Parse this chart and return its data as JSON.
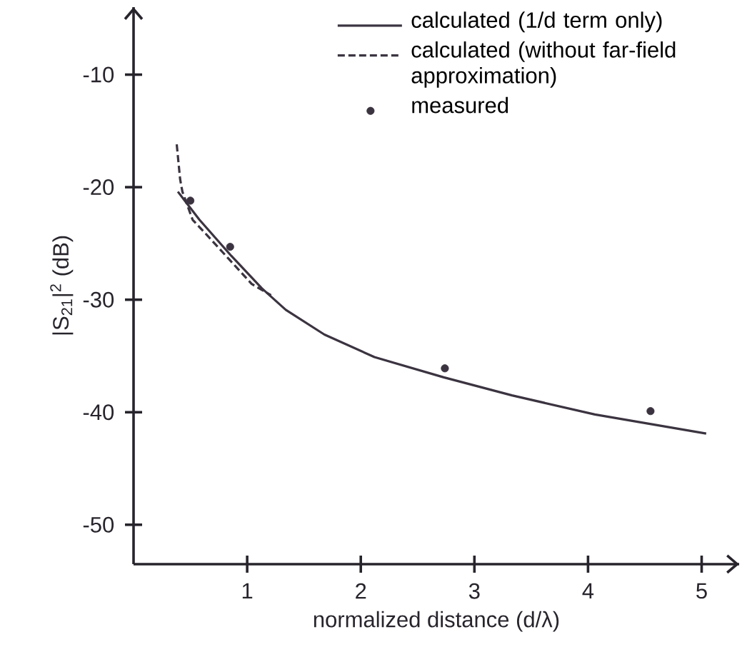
{
  "chart_data": {
    "type": "line",
    "xlabel": "normalized distance (d/λ)",
    "ylabel": "|S$_{21}$|$^{2}$ (dB)",
    "xlim": [
      0,
      5.33
    ],
    "ylim": [
      -53.5,
      -4
    ],
    "xticks": [
      1,
      2,
      3,
      4,
      5
    ],
    "yticks": [
      -50,
      -40,
      -30,
      -20,
      -10
    ],
    "grid": false,
    "legend": "top right",
    "series": [
      {
        "name": "calculated (1/d term only)",
        "line_style": "solid",
        "color": "#3b3440",
        "x": [
          0.39,
          0.58,
          0.86,
          1.13,
          1.34,
          1.68,
          2.12,
          2.73,
          3.33,
          4.06,
          5.04
        ],
        "values": [
          -20.4,
          -22.9,
          -26.1,
          -29.0,
          -30.9,
          -33.1,
          -35.1,
          -36.9,
          -38.5,
          -40.2,
          -41.9
        ]
      },
      {
        "name": "calculated (without far-field approximation)",
        "line_style": "dashed",
        "color": "#3b3440",
        "x": [
          0.38,
          0.41,
          0.43,
          0.52,
          0.65,
          0.84,
          1.04,
          1.21
        ],
        "values": [
          -16.2,
          -19.3,
          -20.4,
          -22.9,
          -24.3,
          -26.4,
          -28.6,
          -29.6
        ]
      },
      {
        "name": "measured",
        "type": "scatter",
        "marker": "circle",
        "color": "#3b3440",
        "x": [
          0.5,
          0.85,
          2.74,
          4.55
        ],
        "values": [
          -21.2,
          -25.3,
          -36.1,
          -39.9
        ]
      }
    ]
  }
}
